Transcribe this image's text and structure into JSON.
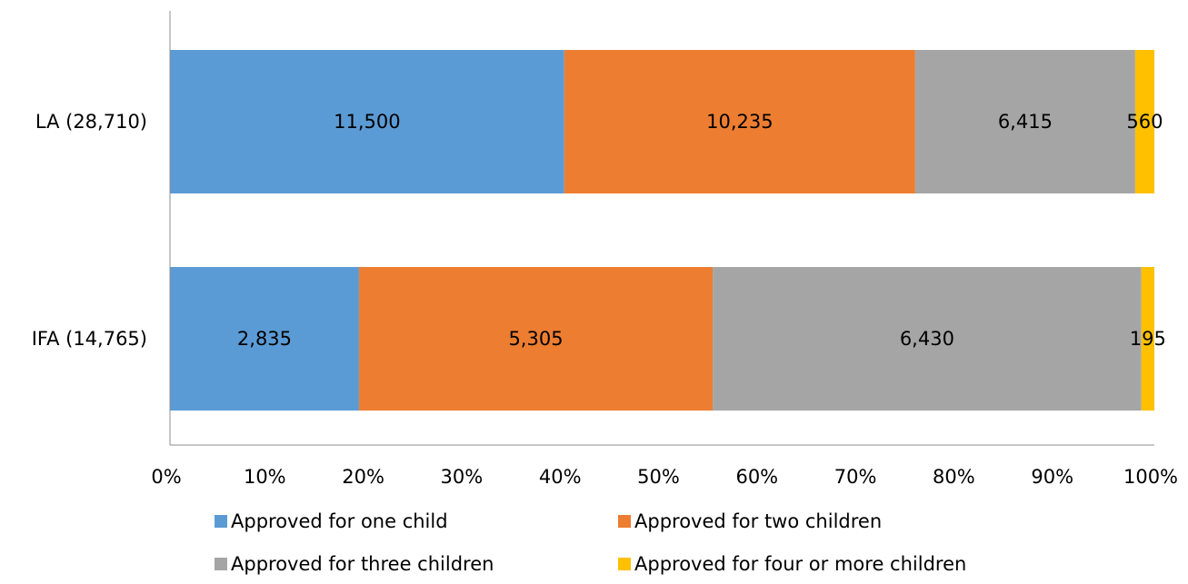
{
  "chart_data": {
    "type": "bar",
    "orientation": "horizontal",
    "stacked": "percent",
    "categories": [
      "LA (28,710)",
      "IFA (14,765)"
    ],
    "series": [
      {
        "name": "Approved for one child",
        "values": [
          11500,
          2835
        ],
        "labels": [
          "11,500",
          "2,835"
        ],
        "color": "#5b9bd5"
      },
      {
        "name": "Approved for two children",
        "values": [
          10235,
          5305
        ],
        "labels": [
          "10,235",
          "5,305"
        ],
        "color": "#ed7d31"
      },
      {
        "name": "Approved for three children",
        "values": [
          6415,
          6430
        ],
        "labels": [
          "6,415",
          "6,430"
        ],
        "color": "#a5a5a5"
      },
      {
        "name": "Approved for four or more children",
        "values": [
          560,
          195
        ],
        "labels": [
          "560",
          "195"
        ],
        "color": "#ffc000"
      }
    ],
    "x_ticks": [
      "0%",
      "10%",
      "20%",
      "30%",
      "40%",
      "50%",
      "60%",
      "70%",
      "80%",
      "90%",
      "100%"
    ],
    "xlim": [
      0,
      100
    ],
    "grid": false,
    "legend_position": "bottom"
  }
}
